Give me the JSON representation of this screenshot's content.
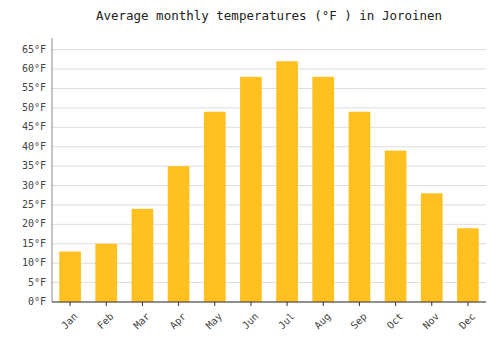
{
  "chart_data": {
    "type": "bar",
    "title": "Average monthly temperatures (°F ) in Joroinen",
    "categories": [
      "Jan",
      "Feb",
      "Mar",
      "Apr",
      "May",
      "Jun",
      "Jul",
      "Aug",
      "Sep",
      "Oct",
      "Nov",
      "Dec"
    ],
    "values": [
      13,
      15,
      24,
      35,
      49,
      58,
      62,
      58,
      49,
      39,
      28,
      19
    ],
    "color": "#FFC020",
    "ylim": [
      0,
      68
    ],
    "yticks": [
      {
        "value": 0,
        "label": "0°F"
      },
      {
        "value": 5,
        "label": "5°F"
      },
      {
        "value": 10,
        "label": "10°F"
      },
      {
        "value": 15,
        "label": "15°F"
      },
      {
        "value": 20,
        "label": "20°F"
      },
      {
        "value": 25,
        "label": "25°F"
      },
      {
        "value": 30,
        "label": "30°F"
      },
      {
        "value": 35,
        "label": "35°F"
      },
      {
        "value": 40,
        "label": "40°F"
      },
      {
        "value": 45,
        "label": "45°F"
      },
      {
        "value": 50,
        "label": "50°F"
      },
      {
        "value": 55,
        "label": "55°F"
      },
      {
        "value": 60,
        "label": "60°F"
      },
      {
        "value": 65,
        "label": "65°F"
      }
    ],
    "grid": true
  }
}
